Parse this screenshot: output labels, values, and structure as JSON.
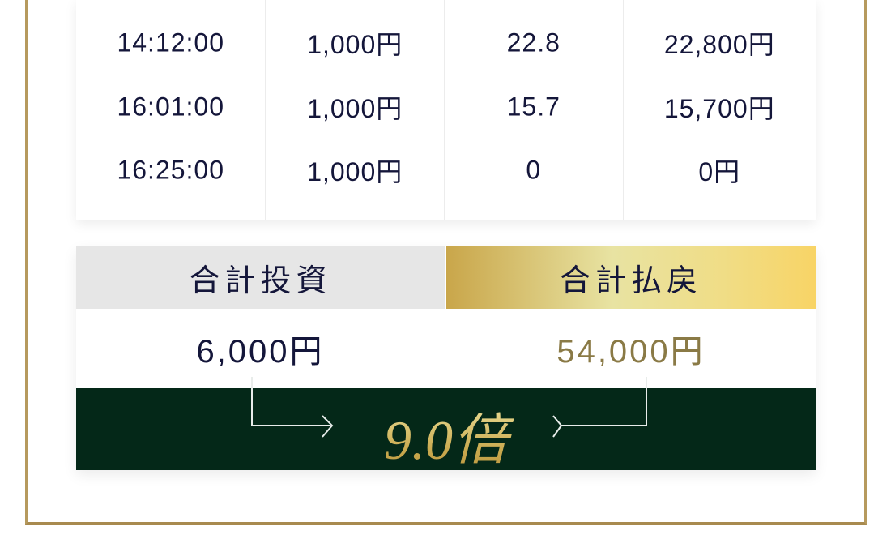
{
  "table": {
    "rows": [
      [
        "14:12:00",
        "1,000円",
        "22.8",
        "22,800円"
      ],
      [
        "16:01:00",
        "1,000円",
        "15.7",
        "15,700円"
      ],
      [
        "16:25:00",
        "1,000円",
        "0",
        "0円"
      ]
    ]
  },
  "summary": {
    "invest_label": "合計投資",
    "payout_label": "合計払戻",
    "invest_value": "6,000円",
    "payout_value": "54,000円",
    "ratio": "9.0倍"
  },
  "colors": {
    "gold": "#b69a5e",
    "dark_green": "#042818",
    "payout_text": "#8a7a46"
  }
}
